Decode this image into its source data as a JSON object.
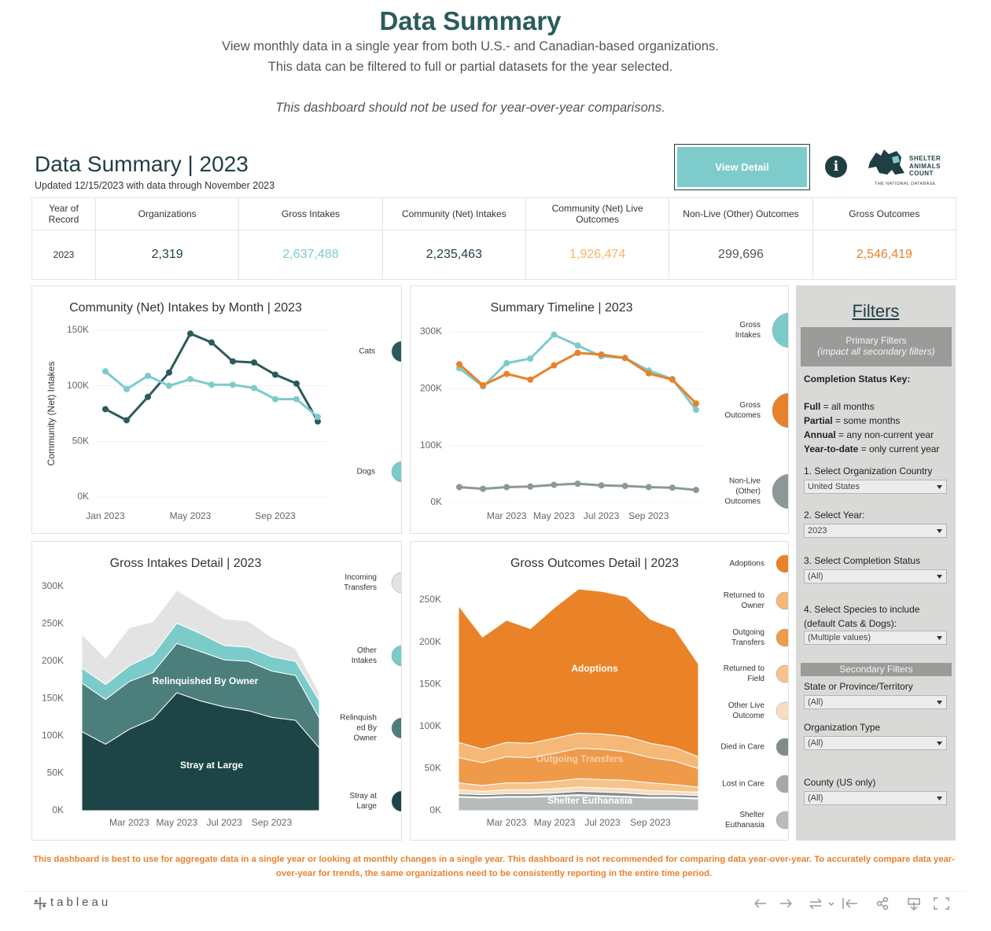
{
  "header": {
    "title": "Data Summary",
    "subtitle_lines": [
      "View monthly data in a single year from both U.S.- and Canadian-based organizations.",
      "This data can be filtered to full or partial datasets for the year selected."
    ],
    "note": "This dashboard should not be used for year-over-year comparisons."
  },
  "dashboard": {
    "title": "Data Summary | 2023",
    "updated": "Updated 12/15/2023 with data through November 2023",
    "button": "View Detail",
    "info": "i",
    "logo": {
      "lines": [
        "SHELTER",
        "ANIMALS",
        "COUNT"
      ],
      "tagline": "THE NATIONAL DATABASE"
    }
  },
  "kpi_table": {
    "headers": [
      "Year of Record",
      "Organizations",
      "Gross Intakes",
      "Community (Net) Intakes",
      "Community (Net) Live Outcomes",
      "Non-Live (Other) Outcomes",
      "Gross Outcomes"
    ],
    "rows": [
      [
        "2023",
        "2,319",
        "2,637,488",
        "2,235,463",
        "1,926,474",
        "299,696",
        "2,546,419"
      ]
    ],
    "colors": [
      "#333333",
      "#1f3f44",
      "#7ccbcb",
      "#1f3f44",
      "#f5b56b",
      "#555555",
      "#e8812b"
    ]
  },
  "chart_data": [
    {
      "type": "line",
      "title": "Community (Net) Intakes by Month | 2023",
      "y_label": "Community (Net) Intakes",
      "categories": [
        "Jan 2023",
        null,
        null,
        null,
        "May 2023",
        null,
        null,
        null,
        "Sep 2023",
        null,
        null
      ],
      "series": [
        {
          "name": "Cats",
          "color": "#2b5a5b",
          "values": [
            79000,
            69000,
            90000,
            112000,
            147000,
            139000,
            122000,
            121000,
            110000,
            102000,
            68000
          ]
        },
        {
          "name": "Dogs",
          "color": "#7ccbcb",
          "values": [
            113000,
            97000,
            109000,
            100000,
            106000,
            101000,
            101000,
            98000,
            88000,
            88000,
            72000
          ]
        }
      ],
      "ylim": [
        0,
        150000
      ],
      "yticks": [
        {
          "value": 0,
          "label": "0K"
        },
        {
          "value": 50000,
          "label": "50K"
        },
        {
          "value": 100000,
          "label": "100K"
        },
        {
          "value": 150000,
          "label": "150K"
        }
      ],
      "grid": true
    },
    {
      "type": "line",
      "title": "Summary Timeline | 2023",
      "categories": [
        null,
        null,
        "Mar 2023",
        null,
        "May 2023",
        null,
        "Jul 2023",
        null,
        "Sep 2023",
        null,
        null
      ],
      "series": [
        {
          "name": "Gross Intakes",
          "color": "#7ccbcb",
          "values": [
            236000,
            204000,
            245000,
            253000,
            295000,
            276000,
            257000,
            254000,
            232000,
            217000,
            163000
          ]
        },
        {
          "name": "Gross Outcomes",
          "color": "#e8812b",
          "values": [
            243000,
            206000,
            226000,
            216000,
            241000,
            263000,
            260000,
            254000,
            227000,
            216000,
            174000
          ]
        },
        {
          "name": "Non-Live (Other) Outcomes",
          "color": "#8b9897",
          "values": [
            27000,
            24000,
            27000,
            28000,
            31000,
            33000,
            30000,
            29000,
            27000,
            26000,
            22000
          ]
        }
      ],
      "ylim": [
        0,
        300000
      ],
      "yticks": [
        {
          "value": 0,
          "label": "0K"
        },
        {
          "value": 100000,
          "label": "100K"
        },
        {
          "value": 200000,
          "label": "200K"
        },
        {
          "value": 300000,
          "label": "300K"
        }
      ],
      "grid": true
    },
    {
      "type": "area",
      "title": "Gross Intakes Detail | 2023",
      "categories": [
        null,
        null,
        "Mar 2023",
        null,
        "May 2023",
        null,
        "Jul 2023",
        null,
        "Sep 2023",
        null,
        null
      ],
      "series": [
        {
          "name": "Stray at Large",
          "color": "#1d4446",
          "values": [
            106000,
            89000,
            109000,
            123000,
            158000,
            147000,
            139000,
            134000,
            125000,
            121000,
            84000
          ]
        },
        {
          "name": "Relinquished By Owner",
          "color": "#4c7e7c",
          "values": [
            65000,
            60000,
            64000,
            62000,
            66000,
            66000,
            63000,
            66000,
            62000,
            60000,
            40000
          ]
        },
        {
          "name": "Other Intakes",
          "color": "#7ccbcb",
          "values": [
            20000,
            20000,
            21000,
            24000,
            27000,
            24000,
            19000,
            19000,
            19000,
            19000,
            23000
          ]
        },
        {
          "name": "Incoming Transfers",
          "color": "#e3e3e3",
          "values": [
            45000,
            35000,
            51000,
            44000,
            44000,
            39000,
            36000,
            35000,
            26000,
            17000,
            11000
          ]
        }
      ],
      "ylim": [
        0,
        300000
      ],
      "yticks": [
        {
          "value": 0,
          "label": "0K"
        },
        {
          "value": 50000,
          "label": "50K"
        },
        {
          "value": 100000,
          "label": "100K"
        },
        {
          "value": 150000,
          "label": "150K"
        },
        {
          "value": 200000,
          "label": "200K"
        },
        {
          "value": 250000,
          "label": "250K"
        },
        {
          "value": 300000,
          "label": "300K"
        }
      ],
      "grid": false
    },
    {
      "type": "area",
      "title": "Gross Outcomes Detail | 2023",
      "categories": [
        null,
        null,
        "Mar 2023",
        null,
        "May 2023",
        null,
        "Jul 2023",
        null,
        "Sep 2023",
        null,
        null
      ],
      "series": [
        {
          "name": "Shelter Euthanasia",
          "color": "#b7bbbb",
          "values": [
            16000,
            15000,
            16000,
            16000,
            17000,
            18000,
            17000,
            16000,
            15000,
            15000,
            14000
          ]
        },
        {
          "name": "Lost in Care",
          "color": "#a4a9a9",
          "values": [
            1000,
            1000,
            1000,
            1000,
            1000,
            1000,
            1000,
            1000,
            1000,
            1000,
            1000
          ]
        },
        {
          "name": "Died in Care",
          "color": "#7f8c8b",
          "values": [
            3000,
            3000,
            3000,
            3000,
            3000,
            4000,
            4000,
            4000,
            3000,
            3000,
            3000
          ]
        },
        {
          "name": "Other Live Outcome",
          "color": "#f9dcc0",
          "values": [
            5000,
            4000,
            5000,
            5000,
            5000,
            5000,
            5000,
            5000,
            5000,
            4000,
            4000
          ]
        },
        {
          "name": "Returned to Field",
          "color": "#f6c38b",
          "values": [
            8000,
            7000,
            8000,
            8000,
            9000,
            10000,
            10000,
            10000,
            9000,
            8000,
            6000
          ]
        },
        {
          "name": "Outgoing Transfers",
          "color": "#ef9a49",
          "values": [
            30000,
            27000,
            31000,
            30000,
            33000,
            36000,
            36000,
            34000,
            30000,
            28000,
            22000
          ]
        },
        {
          "name": "Returned to Owner",
          "color": "#f5b877",
          "values": [
            18000,
            16000,
            17000,
            17000,
            18000,
            18000,
            18000,
            18000,
            17000,
            16000,
            14000
          ]
        },
        {
          "name": "Adoptions",
          "color": "#ea8328",
          "values": [
            162000,
            133000,
            145000,
            136000,
            155000,
            171000,
            169000,
            166000,
            147000,
            141000,
            110000
          ]
        }
      ],
      "ylim": [
        0,
        250000
      ],
      "yticks": [
        {
          "value": 0,
          "label": "0K"
        },
        {
          "value": 50000,
          "label": "50K"
        },
        {
          "value": 100000,
          "label": "100K"
        },
        {
          "value": 150000,
          "label": "150K"
        },
        {
          "value": 200000,
          "label": "200K"
        },
        {
          "value": 250000,
          "label": "250K"
        }
      ],
      "grid": false
    }
  ],
  "filters": {
    "title": "Filters",
    "primary": {
      "title": "Primary Filters",
      "subtitle": "(impact all secondary filters)"
    },
    "key_title": "Completion Status Key:",
    "key": [
      {
        "term": "Full",
        "desc": " = all months"
      },
      {
        "term": "Partial",
        "desc": " = some months"
      },
      {
        "term": "Annual",
        "desc": " = any non-current year"
      },
      {
        "term": "Year-to-date",
        "desc": " = only current year"
      }
    ],
    "selects": [
      {
        "label": "1. Select Organization Country",
        "value": "United States"
      },
      {
        "label": "2. Select Year:",
        "value": "2023"
      },
      {
        "label": "3. Select Completion Status",
        "value": "(All)"
      },
      {
        "label": "4. Select Species to include\n    (default Cats & Dogs):",
        "value": "(Multiple values)"
      }
    ],
    "secondary_title": "Secondary Filters",
    "secondary_selects": [
      {
        "label": "State or Province/Territory",
        "value": "(All)"
      },
      {
        "label": "Organization Type",
        "value": "(All)"
      },
      {
        "label": "County (US only)",
        "value": "(All)"
      }
    ]
  },
  "footer_note": "This dashboard is best to use for aggregate data in a single year or looking at monthly changes in a single year.  This dashboard is not recommended for comparing data year-over-year. To accurately compare data year-over-year for trends, the same organizations need to be consistently reporting in the entire time period.",
  "toolbar": {
    "brand": "tableau"
  }
}
